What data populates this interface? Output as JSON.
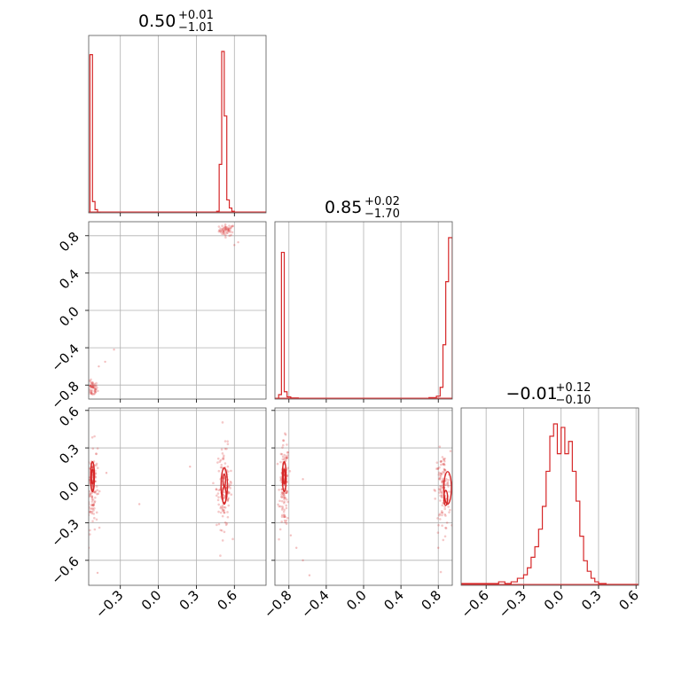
{
  "chart_data": {
    "type": "corner",
    "color": "#d62728",
    "grid": true,
    "parameters": [
      {
        "title": {
          "value": "0.50",
          "plus": "+0.01",
          "minus": "−1.01"
        },
        "range": [
          -0.55,
          0.85
        ],
        "ticks": [
          "−0.3",
          "0.0",
          "0.3",
          "0.6"
        ],
        "tick_values": [
          -0.3,
          0.0,
          0.3,
          0.6
        ]
      },
      {
        "title": {
          "value": "0.85",
          "plus": "+0.02",
          "minus": "−1.70"
        },
        "range": [
          -0.95,
          0.95
        ],
        "ticks": [
          "−0.8",
          "−0.4",
          "0.0",
          "0.4",
          "0.8"
        ],
        "tick_values": [
          -0.8,
          -0.4,
          0.0,
          0.4,
          0.8
        ]
      },
      {
        "title": {
          "value": "−0.01",
          "plus": "+0.12",
          "minus": "−0.10"
        },
        "range": [
          -0.8,
          0.62
        ],
        "ticks": [
          "−0.6",
          "−0.3",
          "0.0",
          "0.3",
          "0.6"
        ],
        "tick_values": [
          -0.6,
          -0.3,
          0.0,
          0.3,
          0.6
        ]
      }
    ],
    "histograms": [
      {
        "parameter": 0,
        "bins": [
          [
            -0.54,
            -0.52,
            0.98
          ],
          [
            -0.52,
            -0.5,
            0.07
          ],
          [
            -0.5,
            -0.48,
            0.02
          ],
          [
            -0.48,
            -0.46,
            0.005
          ],
          [
            0.46,
            0.48,
            0.01
          ],
          [
            0.48,
            0.5,
            0.3
          ],
          [
            0.5,
            0.52,
            1.0
          ],
          [
            0.52,
            0.54,
            0.6
          ],
          [
            0.54,
            0.56,
            0.08
          ],
          [
            0.56,
            0.58,
            0.03
          ],
          [
            0.58,
            0.6,
            0.01
          ]
        ]
      },
      {
        "parameter": 1,
        "bins": [
          [
            -0.91,
            -0.88,
            0.03
          ],
          [
            -0.88,
            -0.85,
            1.0
          ],
          [
            -0.85,
            -0.82,
            0.05
          ],
          [
            -0.82,
            -0.78,
            0.015
          ],
          [
            -0.78,
            -0.7,
            0.008
          ],
          [
            0.7,
            0.78,
            0.01
          ],
          [
            0.78,
            0.82,
            0.02
          ],
          [
            0.82,
            0.85,
            0.08
          ],
          [
            0.85,
            0.88,
            0.37
          ],
          [
            0.88,
            0.91,
            0.8
          ],
          [
            0.91,
            0.95,
            1.1
          ]
        ]
      },
      {
        "parameter": 2,
        "bins": [
          [
            -0.8,
            -0.6,
            0.01
          ],
          [
            -0.6,
            -0.5,
            0.01
          ],
          [
            -0.5,
            -0.45,
            0.02
          ],
          [
            -0.45,
            -0.4,
            0.01
          ],
          [
            -0.4,
            -0.35,
            0.02
          ],
          [
            -0.35,
            -0.3,
            0.04
          ],
          [
            -0.3,
            -0.27,
            0.06
          ],
          [
            -0.27,
            -0.24,
            0.1
          ],
          [
            -0.24,
            -0.21,
            0.16
          ],
          [
            -0.21,
            -0.18,
            0.22
          ],
          [
            -0.18,
            -0.15,
            0.32
          ],
          [
            -0.15,
            -0.12,
            0.45
          ],
          [
            -0.12,
            -0.09,
            0.65
          ],
          [
            -0.09,
            -0.06,
            0.85
          ],
          [
            -0.06,
            -0.03,
            0.92
          ],
          [
            -0.03,
            0.0,
            0.75
          ],
          [
            0.0,
            0.03,
            0.9
          ],
          [
            0.03,
            0.06,
            0.75
          ],
          [
            0.06,
            0.09,
            0.82
          ],
          [
            0.09,
            0.12,
            0.65
          ],
          [
            0.12,
            0.15,
            0.48
          ],
          [
            0.15,
            0.18,
            0.28
          ],
          [
            0.18,
            0.21,
            0.14
          ],
          [
            0.21,
            0.24,
            0.08
          ],
          [
            0.24,
            0.27,
            0.04
          ],
          [
            0.27,
            0.3,
            0.02
          ],
          [
            0.3,
            0.36,
            0.01
          ],
          [
            0.36,
            0.62,
            0.005
          ]
        ]
      }
    ],
    "scatter_panels": [
      {
        "x_param": 0,
        "y_param": 1,
        "clusters": [
          {
            "cx": 0.54,
            "cy": 0.86,
            "sx": 0.03,
            "sy": 0.03,
            "n": 55
          },
          {
            "cx": -0.52,
            "cy": -0.84,
            "sx": 0.02,
            "sy": 0.04,
            "n": 55
          }
        ],
        "contours": [],
        "stray_points": [
          [
            -0.35,
            -0.42
          ],
          [
            -0.47,
            -0.6
          ],
          [
            -0.42,
            -0.55
          ],
          [
            0.63,
            0.73
          ],
          [
            0.6,
            0.7
          ]
        ]
      },
      {
        "x_param": 0,
        "y_param": 2,
        "clusters": [
          {
            "cx": -0.52,
            "cy": 0.0,
            "sx": 0.02,
            "sy": 0.17,
            "n": 130
          },
          {
            "cx": 0.52,
            "cy": -0.02,
            "sx": 0.03,
            "sy": 0.16,
            "n": 130
          }
        ],
        "contours": [
          {
            "cx": -0.52,
            "cy": 0.07,
            "rx": 0.015,
            "ry": 0.12
          },
          {
            "cx": -0.52,
            "cy": 0.07,
            "rx": 0.008,
            "ry": 0.06
          },
          {
            "cx": 0.52,
            "cy": 0.0,
            "rx": 0.025,
            "ry": 0.14
          },
          {
            "cx": 0.52,
            "cy": -0.08,
            "rx": 0.015,
            "ry": 0.07
          },
          {
            "cx": 0.52,
            "cy": 0.04,
            "rx": 0.01,
            "ry": 0.05
          }
        ],
        "stray_points": [
          [
            -0.48,
            -0.7
          ],
          [
            -0.45,
            -0.85
          ],
          [
            -0.41,
            0.1
          ],
          [
            -0.15,
            -0.15
          ],
          [
            0.25,
            0.15
          ],
          [
            -0.55,
            -0.5
          ]
        ]
      },
      {
        "x_param": 1,
        "y_param": 2,
        "clusters": [
          {
            "cx": -0.85,
            "cy": 0.0,
            "sx": 0.025,
            "sy": 0.17,
            "n": 130
          },
          {
            "cx": 0.85,
            "cy": -0.05,
            "sx": 0.04,
            "sy": 0.16,
            "n": 130
          }
        ],
        "contours": [
          {
            "cx": -0.85,
            "cy": 0.07,
            "rx": 0.02,
            "ry": 0.12
          },
          {
            "cx": -0.85,
            "cy": 0.07,
            "rx": 0.01,
            "ry": 0.06
          },
          {
            "cx": 0.9,
            "cy": -0.02,
            "rx": 0.04,
            "ry": 0.13
          },
          {
            "cx": 0.88,
            "cy": -0.1,
            "rx": 0.02,
            "ry": 0.06
          }
        ],
        "stray_points": [
          [
            -0.78,
            -0.4
          ],
          [
            -0.72,
            -0.5
          ],
          [
            -0.65,
            -0.6
          ],
          [
            -0.58,
            -0.72
          ],
          [
            -0.5,
            -0.82
          ],
          [
            -0.45,
            -0.88
          ],
          [
            -0.65,
            0.05
          ],
          [
            0.8,
            -0.5
          ]
        ]
      }
    ]
  }
}
